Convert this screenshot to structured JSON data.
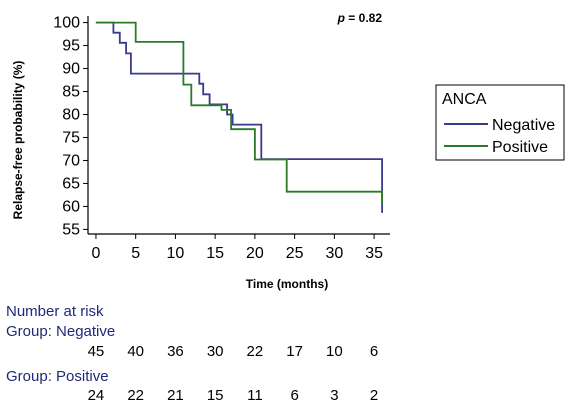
{
  "chart_data": {
    "type": "line",
    "subtype": "kaplan-meier step curve",
    "xlabel": "Time (months)",
    "ylabel": "Relapse-free probability (%)",
    "xlim": [
      -1,
      37
    ],
    "ylim": [
      54,
      101
    ],
    "xticks": [
      0,
      5,
      10,
      15,
      20,
      25,
      30,
      35
    ],
    "yticks": [
      55,
      60,
      65,
      70,
      75,
      80,
      85,
      90,
      95,
      100
    ],
    "annotation_p": "p",
    "annotation_value": " = 0.82",
    "legend": {
      "title": "ANCA",
      "placement": "right"
    },
    "series": [
      {
        "name": "Negative",
        "color": "#3a3a8c",
        "steps": [
          [
            0,
            100
          ],
          [
            2.2,
            100
          ],
          [
            2.2,
            97.8
          ],
          [
            3,
            97.8
          ],
          [
            3,
            95.6
          ],
          [
            3.8,
            95.6
          ],
          [
            3.8,
            93.3
          ],
          [
            4.4,
            93.3
          ],
          [
            4.4,
            88.9
          ],
          [
            13,
            88.9
          ],
          [
            13,
            86.7
          ],
          [
            13.5,
            86.7
          ],
          [
            13.5,
            84.4
          ],
          [
            14.3,
            84.4
          ],
          [
            14.3,
            82.2
          ],
          [
            16.5,
            82.2
          ],
          [
            16.5,
            80
          ],
          [
            17.2,
            80
          ],
          [
            17.2,
            77.8
          ],
          [
            20.8,
            77.8
          ],
          [
            20.8,
            70.3
          ],
          [
            36,
            70.3
          ],
          [
            36,
            58.6
          ]
        ]
      },
      {
        "name": "Positive",
        "color": "#2a7a2a",
        "steps": [
          [
            0,
            100
          ],
          [
            5,
            100
          ],
          [
            5,
            95.8
          ],
          [
            11,
            95.8
          ],
          [
            11,
            86.5
          ],
          [
            12,
            86.5
          ],
          [
            12,
            82
          ],
          [
            15.8,
            82
          ],
          [
            15.8,
            81
          ],
          [
            17,
            81
          ],
          [
            17,
            76.8
          ],
          [
            20,
            76.8
          ],
          [
            20,
            70.2
          ],
          [
            24,
            70.2
          ],
          [
            24,
            63.2
          ],
          [
            36,
            63.2
          ],
          [
            36,
            60.6
          ]
        ]
      }
    ]
  },
  "risk_table": {
    "title": "Number at risk",
    "groups": [
      {
        "label": "Group: Negative",
        "values": [
          "45",
          "40",
          "36",
          "30",
          "22",
          "17",
          "10",
          "6"
        ]
      },
      {
        "label": "Group: Positive",
        "values": [
          "24",
          "22",
          "21",
          "15",
          "11",
          "6",
          "3",
          "2"
        ]
      }
    ]
  }
}
